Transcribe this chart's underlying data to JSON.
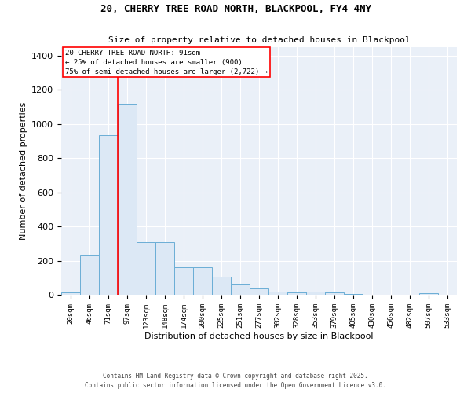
{
  "title_line1": "20, CHERRY TREE ROAD NORTH, BLACKPOOL, FY4 4NY",
  "title_line2": "Size of property relative to detached houses in Blackpool",
  "xlabel": "Distribution of detached houses by size in Blackpool",
  "ylabel": "Number of detached properties",
  "bar_color": "#dce8f5",
  "bar_edge_color": "#6baed6",
  "background_color": "#eaf0f8",
  "grid_color": "#ffffff",
  "bin_labels": [
    "20sqm",
    "46sqm",
    "71sqm",
    "97sqm",
    "123sqm",
    "148sqm",
    "174sqm",
    "200sqm",
    "225sqm",
    "251sqm",
    "277sqm",
    "302sqm",
    "328sqm",
    "353sqm",
    "379sqm",
    "405sqm",
    "430sqm",
    "456sqm",
    "482sqm",
    "507sqm",
    "533sqm"
  ],
  "bar_values": [
    15,
    230,
    935,
    1120,
    310,
    310,
    160,
    160,
    105,
    65,
    35,
    20,
    15,
    20,
    13,
    5,
    0,
    0,
    0,
    8,
    0
  ],
  "red_line_x": 2.5,
  "ylim": [
    0,
    1450
  ],
  "annotation_text": "20 CHERRY TREE ROAD NORTH: 91sqm\n← 25% of detached houses are smaller (900)\n75% of semi-detached houses are larger (2,722) →",
  "footer_line1": "Contains HM Land Registry data © Crown copyright and database right 2025.",
  "footer_line2": "Contains public sector information licensed under the Open Government Licence v3.0."
}
